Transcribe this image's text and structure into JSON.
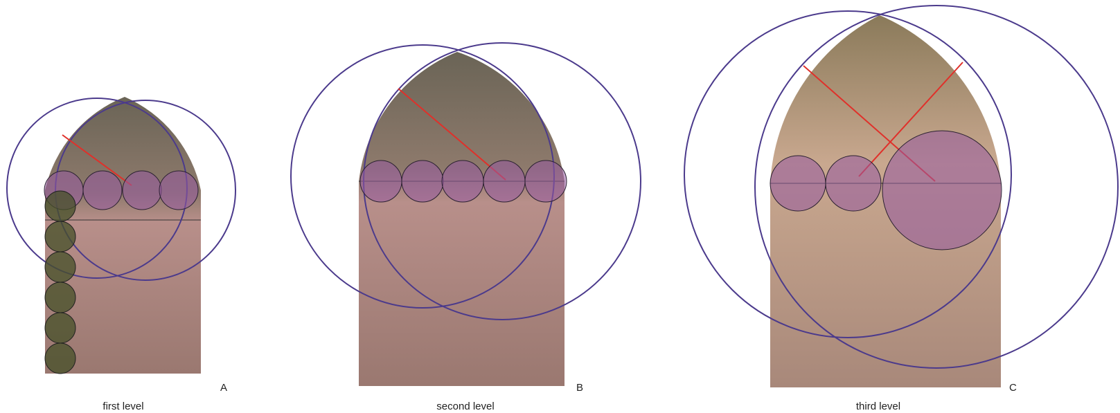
{
  "panels": [
    {
      "label": "A",
      "caption": "first level"
    },
    {
      "label": "B",
      "caption": "second level"
    },
    {
      "label": "C",
      "caption": "third level"
    }
  ]
}
